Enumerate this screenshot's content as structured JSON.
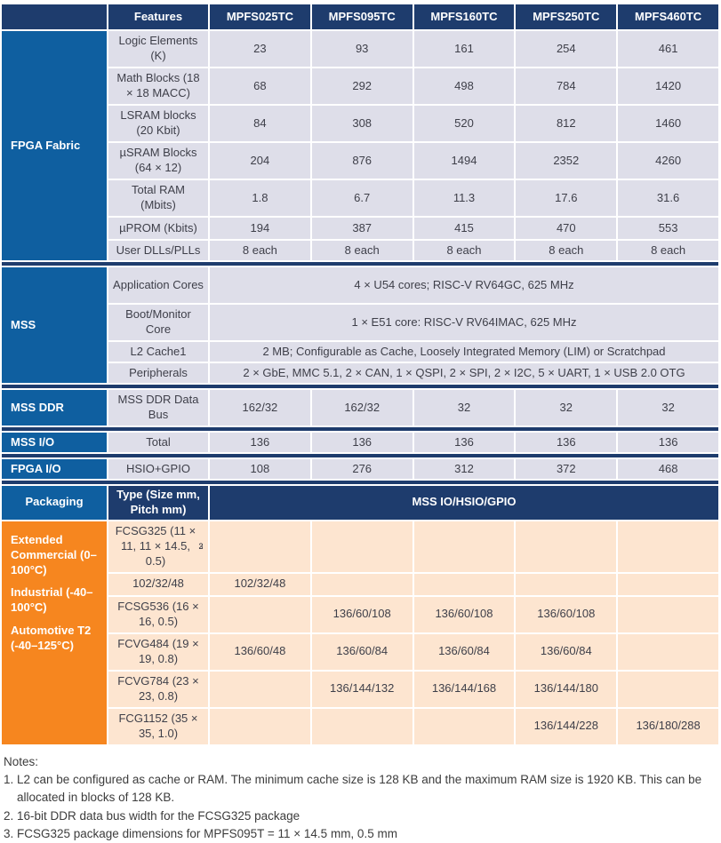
{
  "colors": {
    "header_navy": "#1e3c6d",
    "section_blue": "#0f5fa0",
    "row_lavender": "#dedee9",
    "row_peach": "#fde5d0",
    "packaging_orange": "#f6861f",
    "text_dark": "#3e3f49"
  },
  "table": {
    "header": {
      "feature_col": "Features",
      "devices": [
        "MPFS025TC",
        "MPFS095TC",
        "MPFS160TC",
        "MPFS250TC",
        "MPFS460TC"
      ]
    },
    "sections": [
      {
        "id": "fpga-fabric",
        "label": "FPGA Fabric",
        "rows": [
          {
            "feature": "Logic Elements (K)",
            "values": [
              "23",
              "93",
              "161",
              "254",
              "461"
            ]
          },
          {
            "feature": "Math Blocks (18 × 18 MACC)",
            "values": [
              "68",
              "292",
              "498",
              "784",
              "1420"
            ]
          },
          {
            "feature": "LSRAM blocks (20 Kbit)",
            "values": [
              "84",
              "308",
              "520",
              "812",
              "1460"
            ]
          },
          {
            "feature": "µSRAM Blocks (64 × 12)",
            "values": [
              "204",
              "876",
              "1494",
              "2352",
              "4260"
            ]
          },
          {
            "feature": "Total RAM (Mbits)",
            "values": [
              "1.8",
              "6.7",
              "11.3",
              "17.6",
              "31.6"
            ]
          },
          {
            "feature": "µPROM (Kbits)",
            "values": [
              "194",
              "387",
              "415",
              "470",
              "553"
            ]
          },
          {
            "feature": "User DLLs/PLLs",
            "values": [
              "8 each",
              "8 each",
              "8 each",
              "8 each",
              "8 each"
            ]
          }
        ]
      },
      {
        "id": "mss",
        "label": "MSS",
        "rows": [
          {
            "feature": "Application Cores",
            "span": "4 × U54 cores; RISC-V RV64GC, 625 MHz"
          },
          {
            "feature": "Boot/Monitor Core",
            "span": "1 × E51 core: RISC-V RV64IMAC, 625 MHz"
          },
          {
            "feature": "L2 Cache1",
            "span": "2 MB; Configurable as Cache, Loosely Integrated Memory (LIM) or Scratchpad"
          },
          {
            "feature": "Peripherals",
            "span": "2 × GbE, MMC 5.1, 2 × CAN, 1 × QSPI, 2 × SPI, 2 × I2C, 5 × UART, 1 × USB 2.0 OTG"
          }
        ]
      },
      {
        "id": "mss-ddr",
        "label": "MSS DDR",
        "rows": [
          {
            "feature": "MSS DDR Data Bus",
            "values": [
              "162/32",
              "162/32",
              "32",
              "32",
              "32"
            ]
          }
        ]
      },
      {
        "id": "mss-io",
        "label": "MSS I/O",
        "rows": [
          {
            "feature": "Total",
            "values": [
              "136",
              "136",
              "136",
              "136",
              "136"
            ]
          }
        ]
      },
      {
        "id": "fpga-io",
        "label": "FPGA I/O",
        "rows": [
          {
            "feature": "HSIO+GPIO",
            "values": [
              "108",
              "276",
              "312",
              "372",
              "468"
            ]
          }
        ]
      }
    ],
    "packaging": {
      "label": "Packaging",
      "type_col": "Type (Size mm, Pitch mm)",
      "span_col": "MSS IO/HSIO/GPIO",
      "temp_grades": [
        "Extended Commercial (0–100°C)",
        "Industrial (-40–100°C)",
        "Automotive T2 (-40–125°C)"
      ],
      "rows": [
        {
          "type": "FCSG325 (11 × 11, 11 × 14.5, 0.5)",
          "sup": "2 3",
          "values": [
            "",
            "",
            "",
            "",
            ""
          ]
        },
        {
          "type": "102/32/48",
          "values": [
            "102/32/48",
            "",
            "",
            "",
            ""
          ]
        },
        {
          "type": "FCSG536 (16 × 16, 0.5)",
          "values": [
            "",
            "136/60/108",
            "136/60/108",
            "136/60/108",
            ""
          ]
        },
        {
          "type": "FCVG484 (19 × 19, 0.8)",
          "values": [
            "136/60/48",
            "136/60/84",
            "136/60/84",
            "136/60/84",
            ""
          ]
        },
        {
          "type": "FCVG784 (23 × 23, 0.8)",
          "values": [
            "",
            "136/144/132",
            "136/144/168",
            "136/144/180",
            ""
          ]
        },
        {
          "type": "FCG1152 (35 × 35, 1.0)",
          "values": [
            "",
            "",
            "",
            "136/144/228",
            "136/180/288"
          ]
        }
      ]
    }
  },
  "notes": {
    "title": "Notes:",
    "items": [
      {
        "n": "1.",
        "text": "L2 can be configured as cache or RAM. The minimum cache size is 128 KB and the maximum RAM size is 1920 KB. This can be allocated in blocks of 128 KB."
      },
      {
        "n": "2.",
        "text": "16-bit DDR data bus width for the FCSG325 package"
      },
      {
        "n": "3.",
        "text": "FCSG325 package dimensions for MPFS095T = 11 × 14.5 mm, 0.5 mm"
      }
    ]
  }
}
